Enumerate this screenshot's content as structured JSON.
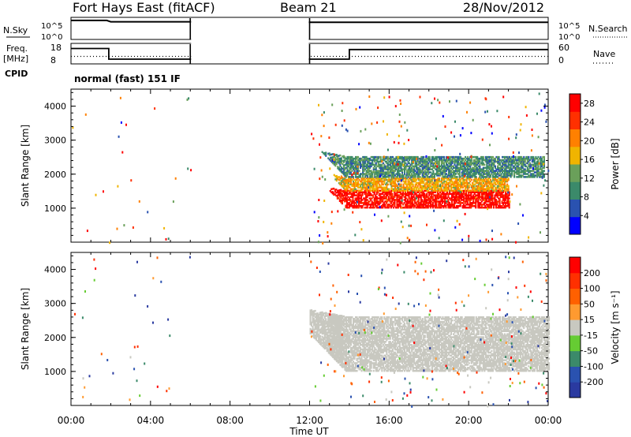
{
  "header": {
    "station": "Fort Hays East (fitACF)",
    "beam": "Beam 21",
    "date": "28/Nov/2012"
  },
  "status_panel": {
    "nsky_label": "N.Sky",
    "nsky_ticks": [
      "10^5",
      "10^0"
    ],
    "nsearch_label": "N.Search",
    "nsearch_ticks": [
      "10^5",
      "10^0"
    ],
    "freq_label": "Freq.",
    "freq_unit": "[MHz]",
    "freq_ticks": [
      "18",
      "8"
    ],
    "nave_label": "Nave",
    "nave_ticks": [
      "60",
      "0"
    ],
    "cpid_label": "CPID",
    "cpid_text": "normal (fast) 151 IF",
    "nsky_series": [
      {
        "t": 0.0,
        "v": 4.3
      },
      {
        "t": 1.8,
        "v": 4.3
      },
      {
        "t": 2.0,
        "v": 4.0
      },
      {
        "t": 6.0,
        "v": 4.0
      },
      {
        "t": 12.0,
        "v": 3.9
      },
      {
        "t": 24.0,
        "v": 3.9
      }
    ],
    "freq_series": [
      {
        "t": 0.0,
        "v": 15.5
      },
      {
        "t": 1.9,
        "v": 15.5
      },
      {
        "t": 1.9,
        "v": 10.3
      },
      {
        "t": 6.0,
        "v": 10.3
      },
      {
        "t": 12.0,
        "v": 10.3
      },
      {
        "t": 14.0,
        "v": 10.3
      },
      {
        "t": 14.0,
        "v": 15.0
      },
      {
        "t": 24.0,
        "v": 15.0
      }
    ],
    "nave_series": [
      {
        "t": 0.0,
        "v": 22
      },
      {
        "t": 6.0,
        "v": 22
      },
      {
        "t": 12.0,
        "v": 22
      },
      {
        "t": 24.0,
        "v": 22
      }
    ],
    "data_gaps": [
      [
        6.0,
        12.0
      ]
    ]
  },
  "chart_data": [
    {
      "type": "heatmap",
      "parameter": "power",
      "xlabel": "Time UT",
      "ylabel": "Slant Range [km]",
      "xlim": [
        0,
        24
      ],
      "ylim": [
        0,
        4500
      ],
      "x_ticks": [
        "00:00",
        "04:00",
        "08:00",
        "12:00",
        "16:00",
        "20:00",
        "00:00"
      ],
      "y_ticks": [
        1000,
        2000,
        3000,
        4000
      ],
      "colorbar_label": "Power [dB]",
      "colorbar_ticks": [
        4,
        8,
        12,
        16,
        20,
        24,
        28
      ],
      "colorbar_range": [
        0,
        30
      ],
      "colors": [
        "#0000ff",
        "#2a52b0",
        "#3b8a6a",
        "#6aa05a",
        "#f0b400",
        "#ff8000",
        "#ff3000",
        "#ff0000"
      ],
      "bands": [
        {
          "range_km": [
            1000,
            1500
          ],
          "value": 28,
          "x": [
            13.0,
            22.0
          ]
        },
        {
          "range_km": [
            1500,
            1900
          ],
          "value": 18,
          "x": [
            13.2,
            22.0
          ]
        },
        {
          "range_km": [
            1900,
            2500
          ],
          "value": 10,
          "x": [
            12.0,
            23.8
          ]
        }
      ]
    },
    {
      "type": "heatmap",
      "parameter": "velocity",
      "xlabel": "Time UT",
      "ylabel": "Slant Range [km]",
      "xlim": [
        0,
        24
      ],
      "ylim": [
        0,
        4500
      ],
      "x_ticks": [
        "00:00",
        "04:00",
        "08:00",
        "12:00",
        "16:00",
        "20:00",
        "00:00"
      ],
      "y_ticks": [
        1000,
        2000,
        3000,
        4000
      ],
      "colorbar_label": "Velocity [m s⁻¹]",
      "colorbar_ticks": [
        "200",
        "100",
        "50",
        "15",
        "-15",
        "-50",
        "-100",
        "-200"
      ],
      "colorbar_range": [
        -250,
        250
      ],
      "colors": [
        "#2a3aa0",
        "#2a52b0",
        "#3b8a6a",
        "#66cc33",
        "#c8c8c0",
        "#ff9a30",
        "#ff6000",
        "#ff3000",
        "#ff0000"
      ],
      "bands": [
        {
          "range_km": [
            1000,
            2600
          ],
          "value": 0,
          "x": [
            12.0,
            24.0
          ]
        },
        {
          "range_km": [
            1000,
            2600
          ],
          "value": 20,
          "x": [
            12.2,
            14.0
          ]
        }
      ]
    }
  ]
}
